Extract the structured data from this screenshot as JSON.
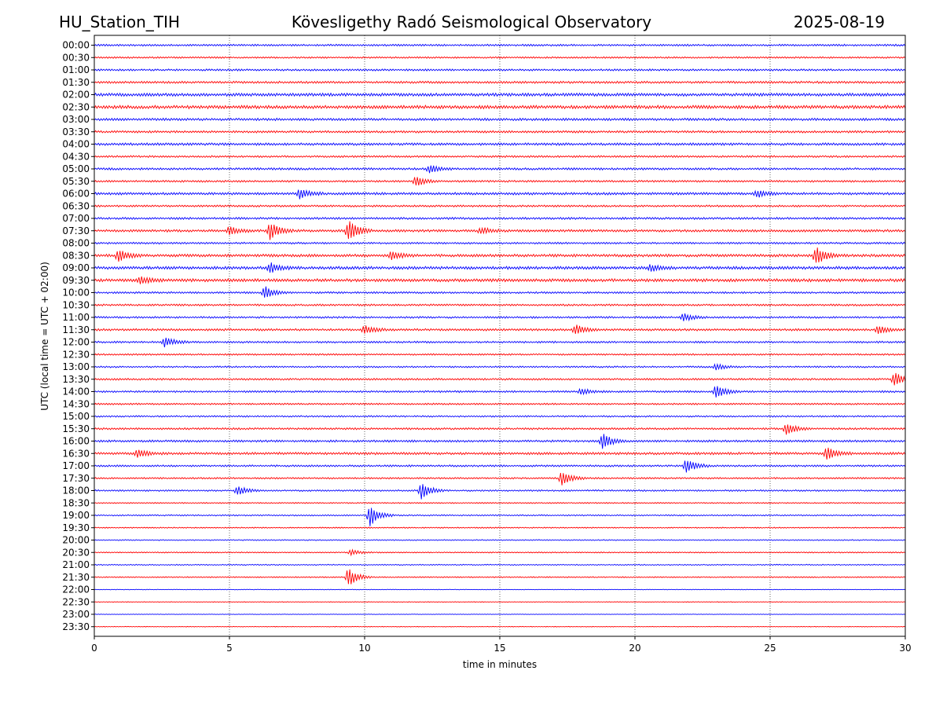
{
  "header": {
    "station": "HU_Station_TIH",
    "observatory": "Kövesligethy Radó Seismological Observatory",
    "date": "2025-08-19"
  },
  "colors": {
    "trace_a": "#0000ff",
    "trace_b": "#ff0000",
    "grid": "#000000"
  },
  "chart_data": {
    "type": "line",
    "title": "Kövesligethy Radó Seismological Observatory",
    "xlabel": "time in minutes",
    "ylabel": "UTC (local time = UTC + 02:00)",
    "xlim": [
      0,
      30
    ],
    "x_ticks": [
      0,
      5,
      10,
      15,
      20,
      25,
      30
    ],
    "x_tick_labels": [
      "0",
      "5",
      "10",
      "15",
      "20",
      "25",
      "30"
    ],
    "grid": "vertical dotted lines at x ticks",
    "rows": [
      "00:00",
      "00:30",
      "01:00",
      "01:30",
      "02:00",
      "02:30",
      "03:00",
      "03:30",
      "04:00",
      "04:30",
      "05:00",
      "05:30",
      "06:00",
      "06:30",
      "07:00",
      "07:30",
      "08:00",
      "08:30",
      "09:00",
      "09:30",
      "10:00",
      "10:30",
      "11:00",
      "11:30",
      "12:00",
      "12:30",
      "13:00",
      "13:30",
      "14:00",
      "14:30",
      "15:00",
      "15:30",
      "16:00",
      "16:30",
      "17:00",
      "17:30",
      "18:00",
      "18:30",
      "19:00",
      "19:30",
      "20:00",
      "20:30",
      "21:00",
      "21:30",
      "22:00",
      "22:30",
      "23:00",
      "23:30"
    ],
    "row_colors": "alternating blue (full hour) and red (half hour)",
    "noise_level": [
      0.35,
      0.3,
      0.35,
      0.4,
      0.55,
      0.6,
      0.45,
      0.4,
      0.45,
      0.35,
      0.4,
      0.35,
      0.45,
      0.35,
      0.4,
      0.45,
      0.35,
      0.5,
      0.55,
      0.55,
      0.35,
      0.35,
      0.35,
      0.4,
      0.35,
      0.3,
      0.3,
      0.35,
      0.35,
      0.3,
      0.3,
      0.35,
      0.4,
      0.45,
      0.35,
      0.3,
      0.3,
      0.2,
      0.25,
      0.2,
      0.2,
      0.2,
      0.2,
      0.2,
      0.12,
      0.1,
      0.1,
      0.1
    ],
    "events": [
      {
        "row": "05:00",
        "minute": 12.4,
        "amp": 0.8
      },
      {
        "row": "05:30",
        "minute": 11.9,
        "amp": 1.0
      },
      {
        "row": "06:00",
        "minute": 7.6,
        "amp": 0.9
      },
      {
        "row": "06:00",
        "minute": 24.5,
        "amp": 0.7
      },
      {
        "row": "07:30",
        "minute": 5.0,
        "amp": 0.8
      },
      {
        "row": "07:30",
        "minute": 6.5,
        "amp": 1.6
      },
      {
        "row": "07:30",
        "minute": 9.4,
        "amp": 2.0
      },
      {
        "row": "07:30",
        "minute": 14.3,
        "amp": 0.6
      },
      {
        "row": "08:30",
        "minute": 0.9,
        "amp": 1.2
      },
      {
        "row": "08:30",
        "minute": 11.0,
        "amp": 0.8
      },
      {
        "row": "08:30",
        "minute": 26.7,
        "amp": 1.8
      },
      {
        "row": "09:00",
        "minute": 6.5,
        "amp": 1.0
      },
      {
        "row": "09:00",
        "minute": 20.6,
        "amp": 0.6
      },
      {
        "row": "09:30",
        "minute": 1.7,
        "amp": 0.7
      },
      {
        "row": "10:00",
        "minute": 6.3,
        "amp": 1.2
      },
      {
        "row": "11:00",
        "minute": 21.8,
        "amp": 0.7
      },
      {
        "row": "11:30",
        "minute": 10.0,
        "amp": 0.8
      },
      {
        "row": "11:30",
        "minute": 17.8,
        "amp": 1.0
      },
      {
        "row": "11:30",
        "minute": 29.0,
        "amp": 0.7
      },
      {
        "row": "12:00",
        "minute": 2.6,
        "amp": 1.0
      },
      {
        "row": "13:00",
        "minute": 23.0,
        "amp": 0.6
      },
      {
        "row": "13:30",
        "minute": 29.6,
        "amp": 1.5
      },
      {
        "row": "14:00",
        "minute": 23.0,
        "amp": 1.3
      },
      {
        "row": "14:00",
        "minute": 18.0,
        "amp": 0.6
      },
      {
        "row": "15:30",
        "minute": 25.6,
        "amp": 1.2
      },
      {
        "row": "16:00",
        "minute": 18.8,
        "amp": 1.4
      },
      {
        "row": "16:30",
        "minute": 1.6,
        "amp": 0.8
      },
      {
        "row": "16:30",
        "minute": 27.1,
        "amp": 1.1
      },
      {
        "row": "17:00",
        "minute": 21.9,
        "amp": 1.3
      },
      {
        "row": "17:30",
        "minute": 17.3,
        "amp": 1.5
      },
      {
        "row": "18:00",
        "minute": 5.3,
        "amp": 0.9
      },
      {
        "row": "18:00",
        "minute": 12.1,
        "amp": 1.6
      },
      {
        "row": "19:00",
        "minute": 10.2,
        "amp": 2.0
      },
      {
        "row": "20:30",
        "minute": 9.5,
        "amp": 0.5
      },
      {
        "row": "21:30",
        "minute": 9.4,
        "amp": 1.8
      }
    ]
  }
}
